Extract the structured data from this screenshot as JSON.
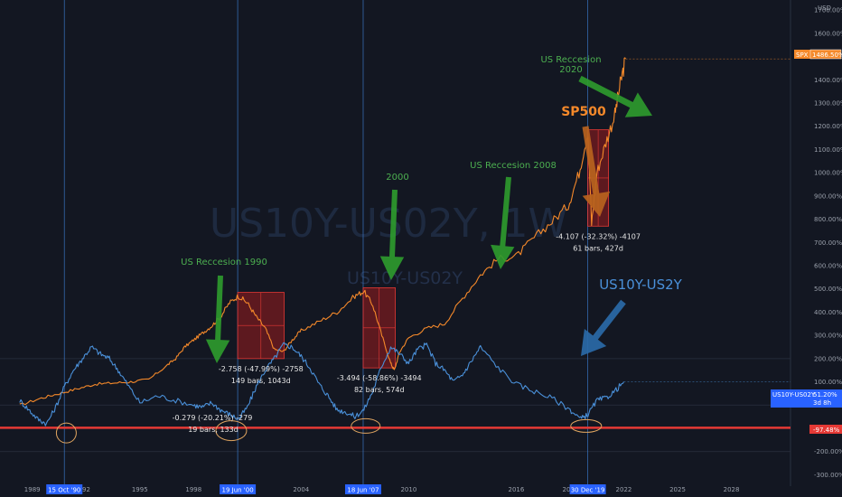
{
  "chart_data": {
    "type": "line",
    "watermark": "US10Y-US02Y, 1W",
    "watermark2": "US10Y-US02Y",
    "currency_label": "USD",
    "xlabel": "",
    "ylabel": "",
    "ylim": [
      -310,
      1720
    ],
    "xlim": [
      1987.2,
      2031.3
    ],
    "y_ticks": [
      -300,
      -200,
      -100,
      0,
      100,
      200,
      300,
      400,
      500,
      600,
      700,
      800,
      900,
      1000,
      1100,
      1200,
      1300,
      1400,
      1500,
      1600,
      1700
    ],
    "y_tick_labels": [
      "-300.00%",
      "-200.00%",
      "-100.00%",
      "0.00%",
      "100.00%",
      "200.00%",
      "300.00%",
      "400.00%",
      "500.00%",
      "600.00%",
      "700.00%",
      "800.00%",
      "900.00%",
      "1000.00%",
      "1100.00%",
      "1200.00%",
      "1300.00%",
      "1400.00%",
      "1500.00%",
      "1600.00%",
      "1700.00%"
    ],
    "x_ticks": [
      {
        "x": 1989.0,
        "label": "1989"
      },
      {
        "x": 1995.0,
        "label": "1995"
      },
      {
        "x": 1998.0,
        "label": "1998"
      },
      {
        "x": 2004.0,
        "label": "2004"
      },
      {
        "x": 2010.0,
        "label": "2010"
      },
      {
        "x": 2016.0,
        "label": "2016"
      },
      {
        "x": 2022.0,
        "label": "2022"
      },
      {
        "x": 2025.0,
        "label": "2025"
      },
      {
        "x": 2028.0,
        "label": "2028"
      }
    ],
    "x_partial_ticks": [
      {
        "x": 1991.9,
        "label": "992"
      },
      {
        "x": 2018.8,
        "label": "20"
      }
    ],
    "date_markers": [
      {
        "x": 1990.79,
        "label": "15 Oct '90"
      },
      {
        "x": 2000.46,
        "label": "19 Jun '00"
      },
      {
        "x": 2007.46,
        "label": "18 Jun '07"
      },
      {
        "x": 2019.99,
        "label": "30 Dec '19"
      }
    ],
    "series": [
      {
        "name": "SPX",
        "color": "#f5892a",
        "last_value_label": "1486.50%",
        "x": [
          1988.3,
          1989.5,
          1990.5,
          1991.5,
          1992.5,
          1993.5,
          1994.5,
          1995.5,
          1996.5,
          1997.0,
          1997.5,
          1998.0,
          1998.5,
          1999.0,
          1999.5,
          2000.0,
          2000.5,
          2001.0,
          2001.5,
          2002.0,
          2002.5,
          2003.0,
          2003.5,
          2004.0,
          2005.0,
          2006.0,
          2007.0,
          2007.5,
          2008.0,
          2008.5,
          2009.0,
          2009.2,
          2009.5,
          2010.0,
          2011.0,
          2012.0,
          2013.0,
          2014.0,
          2015.0,
          2016.0,
          2017.0,
          2018.0,
          2018.9,
          2019.5,
          2020.0,
          2020.2,
          2020.5,
          2021.0,
          2021.5,
          2021.8,
          2022.1
        ],
        "values": [
          0,
          30,
          50,
          70,
          90,
          95,
          100,
          110,
          170,
          200,
          250,
          280,
          310,
          340,
          380,
          440,
          470,
          440,
          380,
          330,
          240,
          230,
          280,
          320,
          360,
          400,
          470,
          490,
          430,
          300,
          180,
          150,
          230,
          290,
          330,
          350,
          460,
          560,
          630,
          640,
          720,
          790,
          860,
          1000,
          1180,
          780,
          1000,
          1130,
          1250,
          1380,
          1490
        ]
      },
      {
        "name": "US10Y-US02Y",
        "color": "#4a90d9",
        "last_value_label": "51.20%",
        "x": [
          1988.3,
          1988.8,
          1989.3,
          1989.8,
          1990.3,
          1990.8,
          1991.3,
          1991.8,
          1992.3,
          1992.8,
          1993.3,
          1993.8,
          1994.3,
          1995.0,
          1996.0,
          1997.0,
          1998.0,
          1998.5,
          1999.0,
          1999.5,
          2000.0,
          2000.5,
          2001.0,
          2001.5,
          2002.0,
          2002.5,
          2003.0,
          2003.5,
          2004.0,
          2004.5,
          2005.0,
          2005.5,
          2006.0,
          2006.5,
          2007.0,
          2007.5,
          2008.0,
          2008.5,
          2009.0,
          2009.5,
          2010.0,
          2010.5,
          2011.0,
          2011.5,
          2012.0,
          2012.5,
          2013.0,
          2013.5,
          2014.0,
          2015.0,
          2016.0,
          2017.0,
          2018.0,
          2019.0,
          2019.6,
          2020.0,
          2020.5,
          2021.0,
          2021.5,
          2022.0
        ],
        "values": [
          20,
          -20,
          -60,
          -80,
          -10,
          80,
          150,
          200,
          250,
          220,
          200,
          150,
          90,
          10,
          40,
          20,
          0,
          -10,
          10,
          -20,
          -40,
          -60,
          -10,
          80,
          150,
          200,
          260,
          250,
          210,
          160,
          90,
          40,
          -20,
          -30,
          -50,
          -20,
          60,
          170,
          250,
          220,
          180,
          240,
          260,
          180,
          150,
          100,
          130,
          190,
          250,
          160,
          90,
          60,
          30,
          -20,
          -60,
          -40,
          20,
          30,
          60,
          100
        ]
      }
    ],
    "zero_line_label": "-97.48%",
    "recession_boxes": [
      {
        "x0": 2000.46,
        "x1": 2003.05,
        "y0": 200,
        "y1": 485,
        "text1": "-2.758 (-47.99%) -2758",
        "text2": "149 bars, 1043d"
      },
      {
        "x0": 2007.46,
        "x1": 2009.25,
        "y0": 160,
        "y1": 505,
        "text1": "-3.494 (-58.86%) -3494",
        "text2": "82 bars, 574d"
      },
      {
        "x0": 2019.99,
        "x1": 2021.15,
        "y0": 770,
        "y1": 1185,
        "text1": "-4.107 (-32.32%) -4107",
        "text2": "61 bars, 427d"
      }
    ],
    "small_measure": {
      "text1": "-0.279 (-20.21%) -279",
      "text2": "19 bars, 133d"
    },
    "annotations": [
      {
        "text": "US Reccesion 1990",
        "color": "#4caf50"
      },
      {
        "text": "2000",
        "color": "#4caf50"
      },
      {
        "text": "US Reccesion 2008",
        "color": "#4caf50"
      },
      {
        "text": "US Reccesion",
        "color": "#4caf50"
      },
      {
        "text": "2020",
        "color": "#4caf50"
      },
      {
        "text": "SP500",
        "color": "#f5892a"
      },
      {
        "text": "US10Y-US2Y",
        "color": "#4a90d9"
      }
    ],
    "badge_spx": "SPX",
    "badge_spread": "US10Y-US02Y",
    "badge_spread_time": "3d 8h",
    "colors": {
      "background": "#131722",
      "spx": "#f5892a",
      "spread": "#4a90d9",
      "zero_line": "#e53935",
      "arrow_green": "#2e9a2e",
      "arrow_orange": "#b8631e",
      "arrow_blue": "#2a6aa8",
      "box_fill": "#b71c1c"
    }
  }
}
